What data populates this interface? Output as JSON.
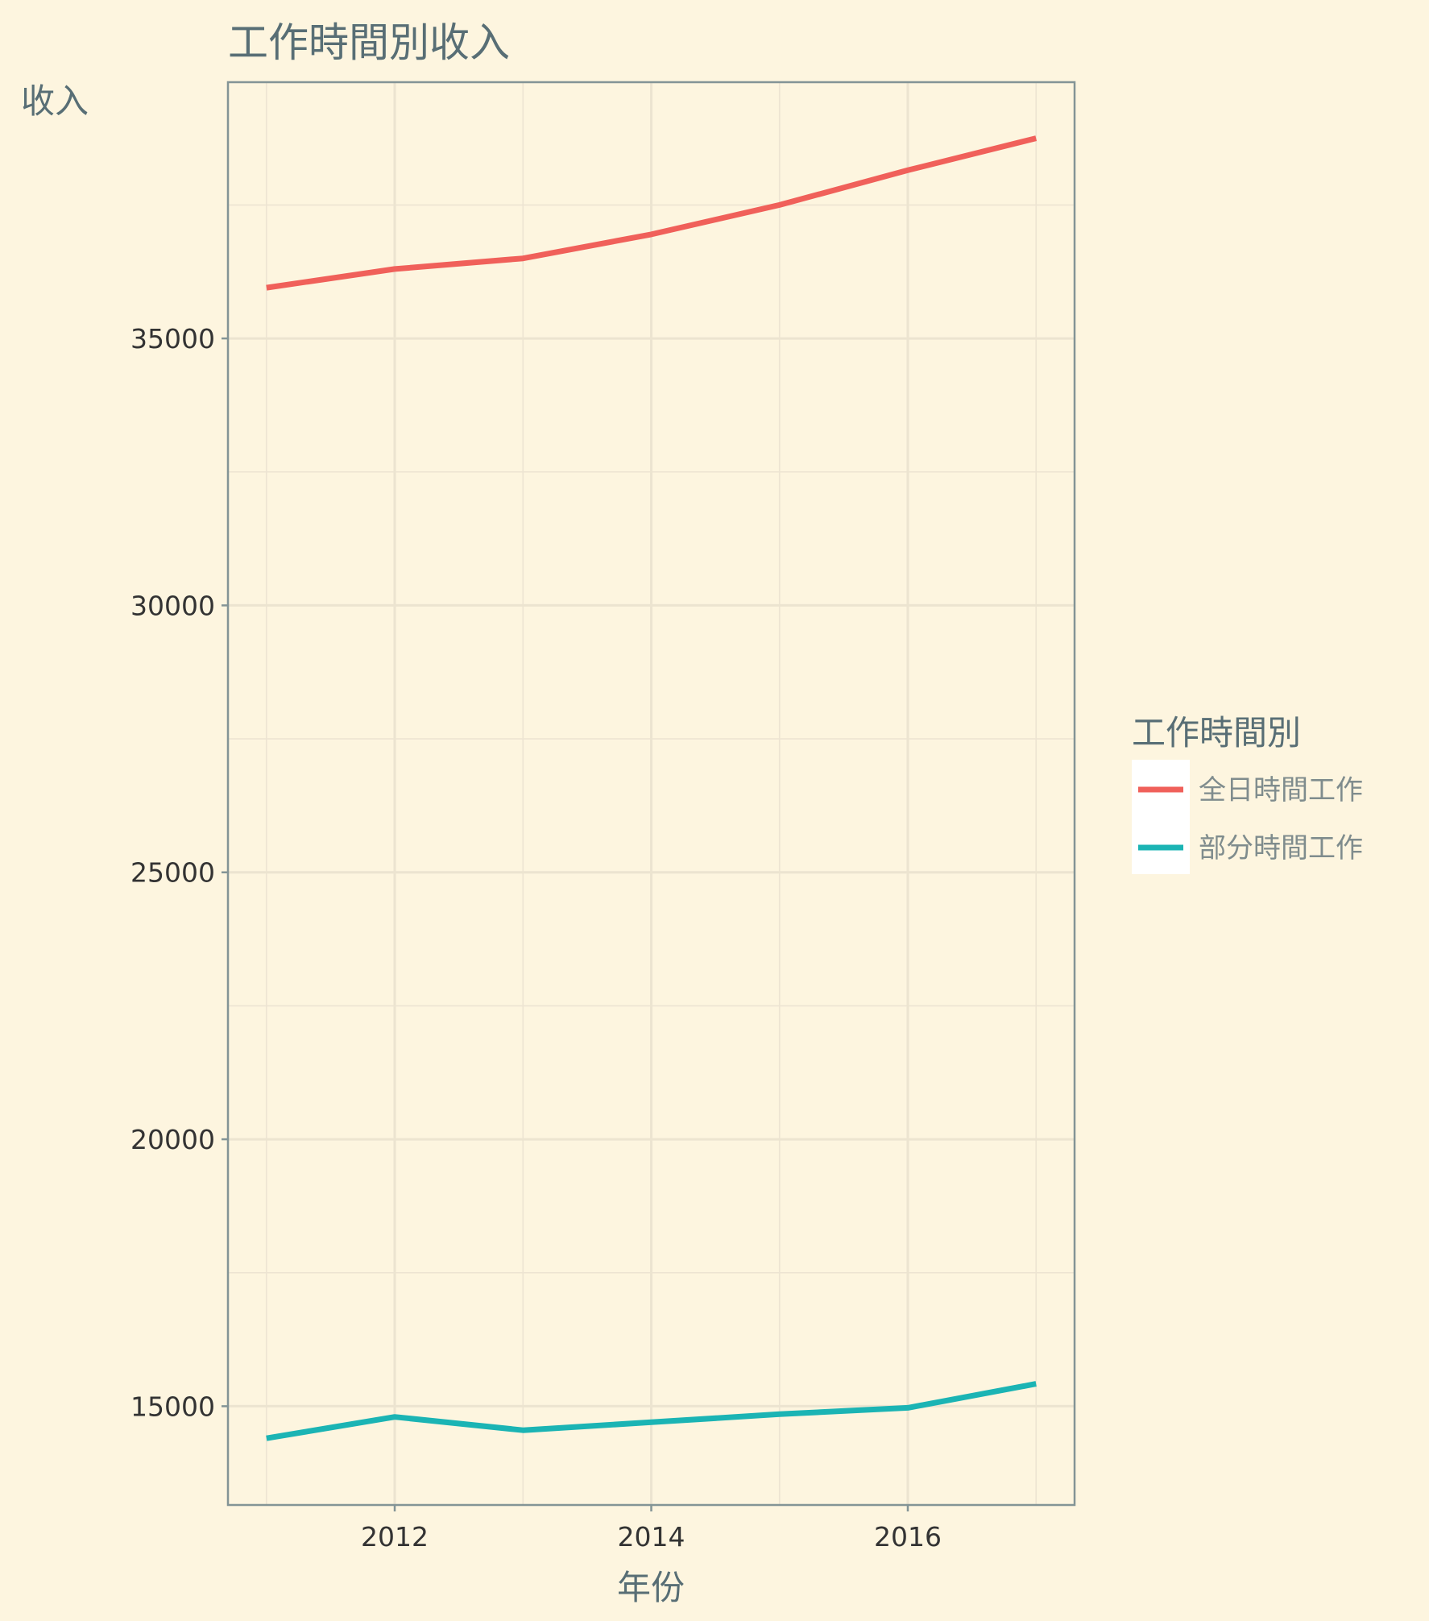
{
  "chart_data": {
    "type": "line",
    "title": "工作時間別收入",
    "xlabel": "年份",
    "ylabel": "收入",
    "x": [
      2011,
      2012,
      2013,
      2014,
      2015,
      2016,
      2017
    ],
    "xlim": [
      2010.7,
      2017.3
    ],
    "ylim": [
      13150,
      39800
    ],
    "x_ticks": [
      2012,
      2014,
      2016
    ],
    "x_minor_ticks": [
      2011,
      2013,
      2015,
      2017
    ],
    "y_ticks": [
      15000,
      20000,
      25000,
      30000,
      35000
    ],
    "y_minor_ticks": [
      17500,
      22500,
      27500,
      32500,
      37500
    ],
    "grid": true,
    "legend": {
      "title": "工作時間別",
      "placement": "right"
    },
    "series": [
      {
        "name": "全日時間工作",
        "color": "#f0605a",
        "values": [
          35950,
          36300,
          36500,
          36950,
          37500,
          38150,
          38750
        ]
      },
      {
        "name": "部分時間工作",
        "color": "#1bb4b4",
        "values": [
          14400,
          14800,
          14550,
          14700,
          14850,
          14970,
          15420
        ]
      }
    ]
  }
}
